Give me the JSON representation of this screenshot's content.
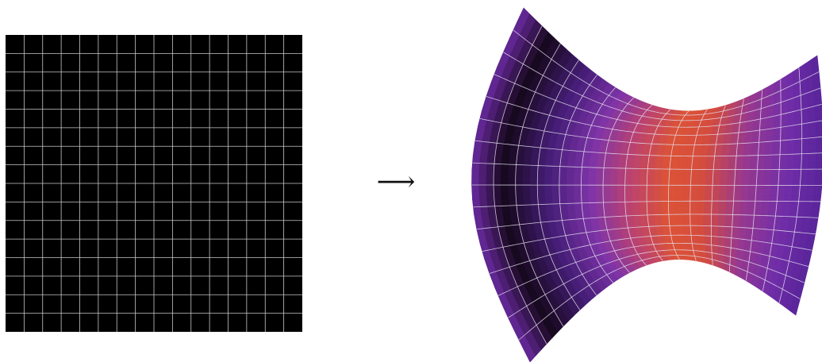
{
  "figure": {
    "source_grid": {
      "fill": "#000000",
      "grid_line_color": "#c8c8c8",
      "cells_x": 16,
      "cells_y": 16
    },
    "mapping_arrow": {
      "glyph": "⟶"
    },
    "target_surface": {
      "grid_line_color": "#e6e0ef",
      "cells_u": 16,
      "cells_v": 16,
      "colormap": [
        "#0c0410",
        "#3d1358",
        "#6b2aa3",
        "#a53c86",
        "#d4493f",
        "#e05536"
      ]
    }
  }
}
